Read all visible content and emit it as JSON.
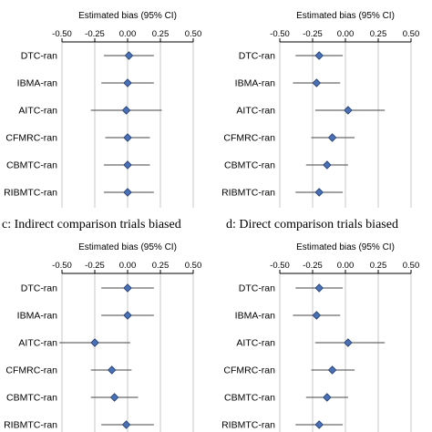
{
  "chart_data": [
    {
      "type": "forest",
      "title": "",
      "xlabel": "Estimated bias (95% CI)",
      "xticks": [
        "-0.50",
        "-0.25",
        "0.00",
        "0.25",
        "0.50"
      ],
      "xlim": [
        -0.5,
        0.5
      ],
      "grid": true,
      "categories": [
        "DTC-ran",
        "IBMA-ran",
        "AITC-ran",
        "CFMRC-ran",
        "CBMTC-ran",
        "RIBMTC-ran"
      ],
      "series": [
        {
          "estimate": [
            0.01,
            0.0,
            -0.01,
            0.0,
            0.0,
            0.0
          ],
          "lower": [
            -0.18,
            -0.2,
            -0.28,
            -0.17,
            -0.18,
            -0.18
          ],
          "upper": [
            0.2,
            0.2,
            0.26,
            0.17,
            0.17,
            0.2
          ]
        }
      ]
    },
    {
      "type": "forest",
      "title": "",
      "xlabel": "Estimated bias (95% CI)",
      "xticks": [
        "-0.50",
        "-0.25",
        "0.00",
        "0.25",
        "0.50"
      ],
      "xlim": [
        -0.5,
        0.5
      ],
      "grid": true,
      "categories": [
        "DTC-ran",
        "IBMA-ran",
        "AITC-ran",
        "CFMRC-ran",
        "CBMTC-ran",
        "RIBMTC-ran"
      ],
      "series": [
        {
          "estimate": [
            -0.2,
            -0.22,
            0.02,
            -0.1,
            -0.14,
            -0.2
          ],
          "lower": [
            -0.38,
            -0.4,
            -0.23,
            -0.26,
            -0.3,
            -0.38
          ],
          "upper": [
            -0.02,
            -0.04,
            0.3,
            0.07,
            0.02,
            -0.02
          ]
        }
      ]
    },
    {
      "type": "forest",
      "title": "c: Indirect comparison trials biased",
      "xlabel": "Estimated bias (95% CI)",
      "xticks": [
        "-0.50",
        "-0.25",
        "0.00",
        "0.25",
        "0.50"
      ],
      "xlim": [
        -0.5,
        0.5
      ],
      "grid": true,
      "categories": [
        "DTC-ran",
        "IBMA-ran",
        "AITC-ran",
        "CFMRC-ran",
        "CBMTC-ran",
        "RIBMTC-ran"
      ],
      "series": [
        {
          "estimate": [
            0.0,
            0.0,
            -0.25,
            -0.12,
            -0.1,
            -0.01
          ],
          "lower": [
            -0.2,
            -0.2,
            -0.52,
            -0.28,
            -0.28,
            -0.2
          ],
          "upper": [
            0.2,
            0.2,
            0.02,
            0.03,
            0.08,
            0.2
          ]
        }
      ]
    },
    {
      "type": "forest",
      "title": "d: Direct comparison trials biased",
      "xlabel": "Estimated bias (95% CI)",
      "xticks": [
        "-0.50",
        "-0.25",
        "0.00",
        "0.25",
        "0.50"
      ],
      "xlim": [
        -0.5,
        0.5
      ],
      "grid": true,
      "categories": [
        "DTC-ran",
        "IBMA-ran",
        "AITC-ran",
        "CFMRC-ran",
        "CBMTC-ran",
        "RIBMTC-ran"
      ],
      "series": [
        {
          "estimate": [
            -0.2,
            -0.22,
            0.02,
            -0.1,
            -0.14,
            -0.2
          ],
          "lower": [
            -0.38,
            -0.4,
            -0.23,
            -0.26,
            -0.3,
            -0.38
          ],
          "upper": [
            -0.02,
            -0.04,
            0.3,
            0.07,
            0.02,
            -0.02
          ]
        }
      ]
    }
  ],
  "colors": {
    "marker_fill": "#4a70b6",
    "marker_stroke": "#1f3a6b",
    "axis": "#000000",
    "grid": "#c8c8c8",
    "ci_line": "#444444"
  }
}
